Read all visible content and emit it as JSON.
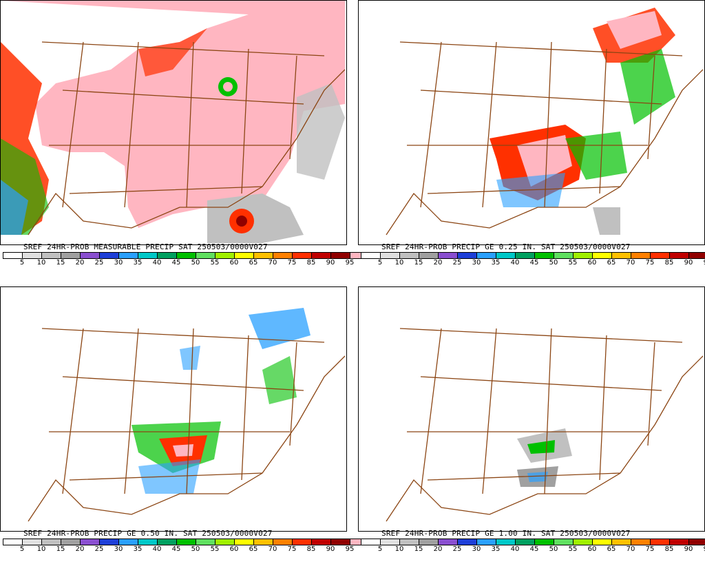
{
  "panels": [
    {
      "title": "SREF 24HR-PROB MEASURABLE PRECIP SAT 250503/0000V027",
      "colors": [
        "#ffffff",
        "#e0e0e0",
        "#c0c0c0",
        "#a0a0a0",
        "#8a4fd0",
        "#1e3fd8",
        "#2aa0ff",
        "#00c8c8",
        "#00a060",
        "#00c000",
        "#60e060",
        "#a0f000",
        "#ffff00",
        "#ffc000",
        "#ff8000",
        "#ff3000",
        "#c00000",
        "#900000",
        "#ffb6c1"
      ]
    },
    {
      "title": "SREF 24HR-PROB PRECIP GE 0.25 IN. SAT 250503/0000V027",
      "colors": [
        "#ffffff",
        "#e0e0e0",
        "#c0c0c0",
        "#a0a0a0",
        "#8a4fd0",
        "#1e3fd8",
        "#2aa0ff",
        "#00c8c8",
        "#00a060",
        "#00c000",
        "#60e060",
        "#a0f000",
        "#ffff00",
        "#ffc000",
        "#ff8000",
        "#ff3000",
        "#c00000",
        "#900000",
        "#ffb6c1"
      ]
    },
    {
      "title": "SREF 24HR-PROB PRECIP GE 0.50 IN. SAT 250503/0000V027",
      "colors": [
        "#ffffff",
        "#e0e0e0",
        "#c0c0c0",
        "#a0a0a0",
        "#8a4fd0",
        "#1e3fd8",
        "#2aa0ff",
        "#00c8c8",
        "#00a060",
        "#00c000",
        "#60e060",
        "#a0f000",
        "#ffff00",
        "#ffc000",
        "#ff8000",
        "#ff3000",
        "#c00000",
        "#900000",
        "#ffb6c1"
      ]
    },
    {
      "title": "SREF 24HR-PROB PRECIP GE 1.00 IN. SAT 250503/0000V027",
      "colors": [
        "#ffffff",
        "#e0e0e0",
        "#c0c0c0",
        "#a0a0a0",
        "#8a4fd0",
        "#1e3fd8",
        "#2aa0ff",
        "#00c8c8",
        "#00a060",
        "#00c000",
        "#60e060",
        "#a0f000",
        "#ffff00",
        "#ffc000",
        "#ff8000",
        "#ff3000",
        "#c00000",
        "#900000",
        "#ffb6c1"
      ]
    }
  ],
  "colorbar_labels": [
    "5",
    "10",
    "15",
    "20",
    "25",
    "30",
    "35",
    "40",
    "45",
    "50",
    "55",
    "60",
    "65",
    "70",
    "75",
    "85",
    "90",
    "95"
  ],
  "map_border_color": "#8b4513"
}
